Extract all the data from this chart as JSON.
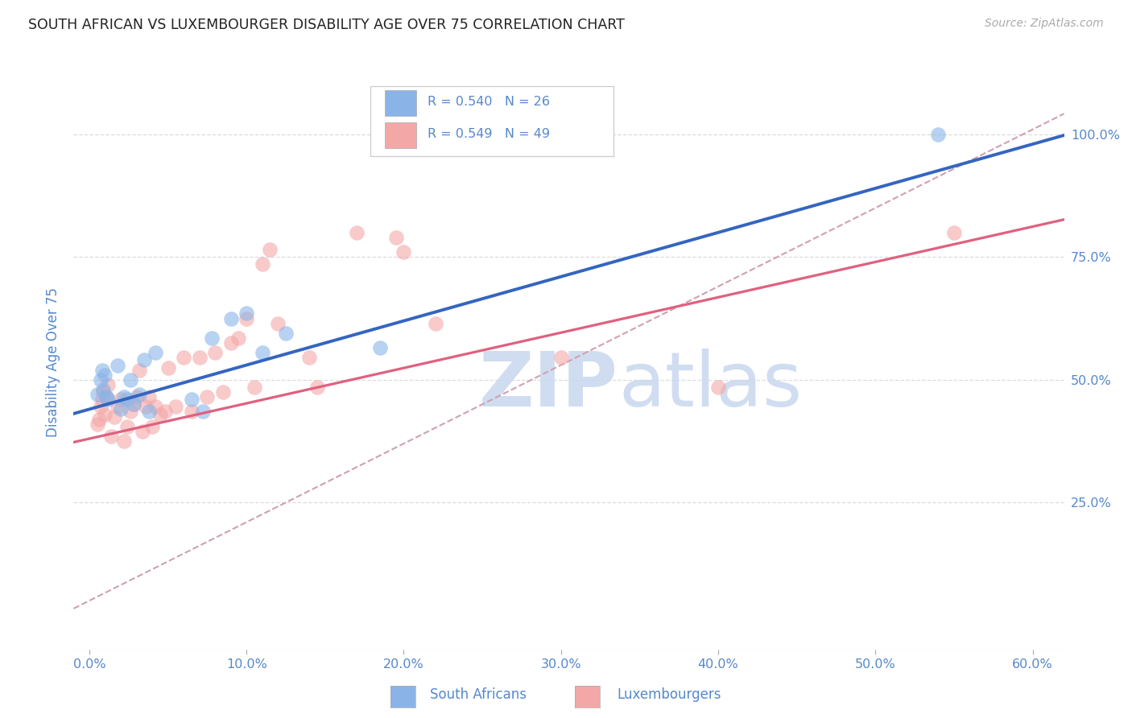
{
  "title": "SOUTH AFRICAN VS LUXEMBOURGER DISABILITY AGE OVER 75 CORRELATION CHART",
  "source": "Source: ZipAtlas.com",
  "ylabel": "Disability Age Over 75",
  "x_tick_labels": [
    "0.0%",
    "10.0%",
    "20.0%",
    "30.0%",
    "40.0%",
    "50.0%",
    "60.0%"
  ],
  "x_tick_values": [
    0.0,
    0.1,
    0.2,
    0.3,
    0.4,
    0.5,
    0.6
  ],
  "y_right_tick_labels": [
    "25.0%",
    "50.0%",
    "75.0%",
    "100.0%"
  ],
  "y_tick_values": [
    0.25,
    0.5,
    0.75,
    1.0
  ],
  "xlim": [
    -0.01,
    0.62
  ],
  "ylim": [
    -0.05,
    1.12
  ],
  "legend_blue_r": "R = 0.540",
  "legend_blue_n": "N = 26",
  "legend_pink_r": "R = 0.549",
  "legend_pink_n": "N = 49",
  "legend_label_blue": "South Africans",
  "legend_label_pink": "Luxembourgers",
  "blue_scatter_color": "#8ab4e8",
  "pink_scatter_color": "#f4a7a7",
  "blue_line_color": "#3465c0",
  "pink_line_color": "#e06080",
  "ref_line_color": "#d0a0b0",
  "watermark_zip_color": "#c5d8f0",
  "watermark_atlas_color": "#c5d8f0",
  "title_color": "#222222",
  "axis_tick_color": "#5588cc",
  "background_color": "#ffffff",
  "grid_color": "#dddddd",
  "south_african_x": [
    0.005,
    0.007,
    0.008,
    0.009,
    0.01,
    0.011,
    0.012,
    0.018,
    0.02,
    0.022,
    0.024,
    0.026,
    0.028,
    0.032,
    0.035,
    0.038,
    0.042,
    0.065,
    0.072,
    0.078,
    0.09,
    0.1,
    0.11,
    0.125,
    0.185,
    0.54
  ],
  "south_african_y": [
    0.47,
    0.5,
    0.52,
    0.48,
    0.51,
    0.465,
    0.46,
    0.53,
    0.44,
    0.465,
    0.46,
    0.5,
    0.45,
    0.47,
    0.54,
    0.435,
    0.555,
    0.46,
    0.435,
    0.585,
    0.625,
    0.635,
    0.555,
    0.595,
    0.565,
    1.0
  ],
  "luxembourger_x": [
    0.005,
    0.006,
    0.007,
    0.008,
    0.009,
    0.01,
    0.011,
    0.012,
    0.014,
    0.016,
    0.018,
    0.02,
    0.022,
    0.024,
    0.026,
    0.028,
    0.03,
    0.032,
    0.034,
    0.036,
    0.038,
    0.04,
    0.042,
    0.045,
    0.048,
    0.05,
    0.055,
    0.06,
    0.065,
    0.07,
    0.075,
    0.08,
    0.085,
    0.09,
    0.095,
    0.1,
    0.105,
    0.11,
    0.115,
    0.12,
    0.14,
    0.145,
    0.17,
    0.195,
    0.22,
    0.3,
    0.4,
    0.55,
    0.2
  ],
  "luxembourger_y": [
    0.41,
    0.42,
    0.445,
    0.46,
    0.475,
    0.43,
    0.465,
    0.49,
    0.385,
    0.425,
    0.445,
    0.46,
    0.375,
    0.405,
    0.435,
    0.45,
    0.465,
    0.52,
    0.395,
    0.445,
    0.465,
    0.405,
    0.445,
    0.43,
    0.435,
    0.525,
    0.445,
    0.545,
    0.435,
    0.545,
    0.465,
    0.555,
    0.475,
    0.575,
    0.585,
    0.625,
    0.485,
    0.735,
    0.765,
    0.615,
    0.545,
    0.485,
    0.8,
    0.79,
    0.615,
    0.545,
    0.485,
    0.8,
    0.76
  ],
  "blue_reg_slope": 0.9,
  "blue_reg_intercept": 0.44,
  "pink_reg_slope": 0.72,
  "pink_reg_intercept": 0.38,
  "ref_slope": 1.6,
  "ref_intercept": 0.05
}
